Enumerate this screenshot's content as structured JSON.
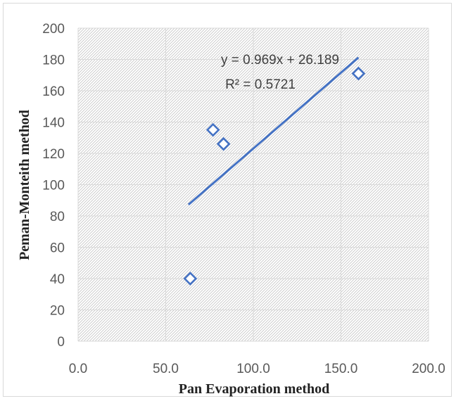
{
  "chart_data": {
    "type": "scatter",
    "title": "",
    "xlabel": "Pan Evaporation method",
    "ylabel": "Peman-Monteith method",
    "xlim": [
      0,
      200
    ],
    "ylim": [
      0,
      200
    ],
    "x_ticks": [
      "0.0",
      "50.0",
      "100.0",
      "150.0",
      "200.0"
    ],
    "y_ticks": [
      "0",
      "20",
      "40",
      "60",
      "80",
      "100",
      "120",
      "140",
      "160",
      "180",
      "200"
    ],
    "grid": true,
    "legend": "none",
    "marker": "diamond-open",
    "series": [
      {
        "points": [
          {
            "x": 64,
            "y": 40
          },
          {
            "x": 77,
            "y": 135
          },
          {
            "x": 83,
            "y": 126
          },
          {
            "x": 160,
            "y": 171
          }
        ]
      }
    ],
    "trendline": {
      "slope": 0.969,
      "intercept": 26.189,
      "x_range": [
        63,
        160
      ],
      "equation_label": "y = 0.969x + 26.189",
      "r2_label": "R² = 0.5721"
    },
    "colors": {
      "marker": "#4472c4",
      "trendline": "#4472c4",
      "grid": "#d9d9d9",
      "hatch": "#c0c0c0"
    }
  }
}
